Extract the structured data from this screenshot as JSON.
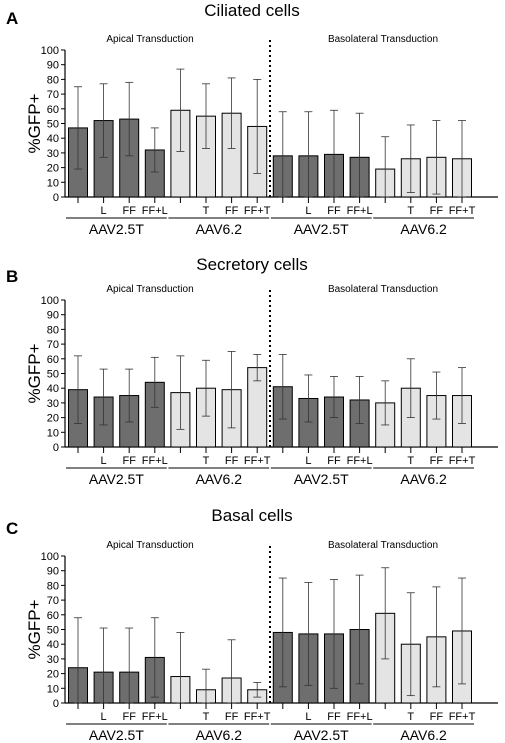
{
  "colors": {
    "dark": "#6e6e6e",
    "light": "#e4e4e4",
    "axis": "#000000"
  },
  "chart_data": [
    {
      "type": "bar",
      "panel_label": "A",
      "title": "Ciliated cells",
      "ylabel": "%GFP+",
      "ylim": [
        0,
        100
      ],
      "yticks": [
        "0",
        "10",
        "20",
        "30",
        "40",
        "50",
        "60",
        "70",
        "80",
        "90",
        "100"
      ],
      "sections": [
        "Apical Transduction",
        "Basolateral Transduction"
      ],
      "categories": [
        "",
        "L",
        "FF",
        "FF+L",
        "",
        "T",
        "FF",
        "FF+T",
        "",
        "L",
        "FF",
        "FF+L",
        "",
        "T",
        "FF",
        "FF+T"
      ],
      "groups": [
        "AAV2.5T",
        "AAV6.2",
        "AAV2.5T",
        "AAV6.2"
      ],
      "values": [
        47,
        52,
        53,
        32,
        59,
        55,
        57,
        48,
        28,
        28,
        29,
        27,
        19,
        26,
        27,
        26
      ],
      "sd": [
        28,
        25,
        25,
        15,
        28,
        22,
        24,
        32,
        30,
        30,
        30,
        30,
        22,
        23,
        25,
        26
      ]
    },
    {
      "type": "bar",
      "panel_label": "B",
      "title": "Secretory cells",
      "ylabel": "%GFP+",
      "ylim": [
        0,
        100
      ],
      "yticks": [
        "0",
        "10",
        "20",
        "30",
        "40",
        "50",
        "60",
        "70",
        "80",
        "90",
        "100"
      ],
      "sections": [
        "Apical Transduction",
        "Basolateral Transduction"
      ],
      "categories": [
        "",
        "L",
        "FF",
        "FF+L",
        "",
        "T",
        "FF",
        "FF+T",
        "",
        "L",
        "FF",
        "FF+L",
        "",
        "T",
        "FF",
        "FF+T"
      ],
      "groups": [
        "AAV2.5T",
        "AAV6.2",
        "AAV2.5T",
        "AAV6.2"
      ],
      "values": [
        39,
        34,
        35,
        44,
        37,
        40,
        39,
        54,
        41,
        33,
        34,
        32,
        30,
        40,
        35,
        35
      ],
      "sd": [
        23,
        19,
        18,
        17,
        25,
        19,
        26,
        9,
        22,
        16,
        14,
        16,
        15,
        20,
        16,
        19
      ]
    },
    {
      "type": "bar",
      "panel_label": "C",
      "title": "Basal cells",
      "ylabel": "%GFP+",
      "ylim": [
        0,
        100
      ],
      "yticks": [
        "0",
        "10",
        "20",
        "30",
        "40",
        "50",
        "60",
        "70",
        "80",
        "90",
        "100"
      ],
      "sections": [
        "Apical Transduction",
        "Basolateral Transduction"
      ],
      "categories": [
        "",
        "L",
        "FF",
        "FF+L",
        "",
        "T",
        "FF",
        "FF+T",
        "",
        "L",
        "FF",
        "FF+L",
        "",
        "T",
        "FF",
        "FF+T"
      ],
      "groups": [
        "AAV2.5T",
        "AAV6.2",
        "AAV2.5T",
        "AAV6.2"
      ],
      "values": [
        24,
        21,
        21,
        31,
        18,
        9,
        17,
        9,
        48,
        47,
        47,
        50,
        61,
        40,
        45,
        49
      ],
      "sd": [
        34,
        30,
        30,
        27,
        30,
        14,
        26,
        5,
        37,
        35,
        37,
        37,
        31,
        35,
        34,
        36
      ]
    }
  ]
}
